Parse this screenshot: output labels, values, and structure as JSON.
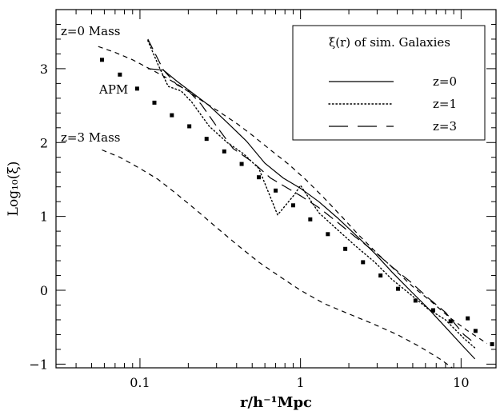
{
  "chart_data": {
    "type": "line",
    "title": "",
    "xlabel": "r/h⁻¹Mpc",
    "ylabel": "Log₁₀(ξ)",
    "xscale": "log",
    "xlim": [
      0.03,
      16.5
    ],
    "ylim": [
      -1.05,
      3.8
    ],
    "xticks_major": [
      {
        "value": 0.1,
        "label": "0.1"
      },
      {
        "value": 1,
        "label": "1"
      },
      {
        "value": 10,
        "label": "10"
      }
    ],
    "yticks_major": [
      {
        "value": -1,
        "label": "−1"
      },
      {
        "value": 0,
        "label": "0"
      },
      {
        "value": 1,
        "label": "1"
      },
      {
        "value": 2,
        "label": "2"
      },
      {
        "value": 3,
        "label": "3"
      }
    ],
    "legend": {
      "title": "ξ(r) of sim. Galaxies",
      "placement": "top-right"
    },
    "series": [
      {
        "name": "z=0",
        "style": "solid",
        "x": [
          0.112,
          0.14,
          0.17,
          0.21,
          0.27,
          0.35,
          0.46,
          0.6,
          0.78,
          1.0,
          1.3,
          1.7,
          2.2,
          2.9,
          3.7,
          4.8,
          6.2,
          8.0,
          10.4,
          12.2
        ],
        "y": [
          3.0,
          2.98,
          2.83,
          2.68,
          2.5,
          2.27,
          2.02,
          1.72,
          1.52,
          1.38,
          1.2,
          0.98,
          0.75,
          0.5,
          0.25,
          0.0,
          -0.24,
          -0.5,
          -0.77,
          -0.93
        ]
      },
      {
        "name": "z=1",
        "style": "dotted",
        "x": [
          0.112,
          0.13,
          0.15,
          0.18,
          0.21,
          0.27,
          0.35,
          0.44,
          0.55,
          0.72,
          0.92,
          1.0,
          1.3,
          1.7,
          2.2,
          2.9,
          3.7,
          4.8,
          6.2,
          8.0,
          10.4,
          12.2
        ],
        "y": [
          3.38,
          3.05,
          2.76,
          2.7,
          2.55,
          2.22,
          2.0,
          1.85,
          1.65,
          1.02,
          1.3,
          1.42,
          1.05,
          0.82,
          0.6,
          0.38,
          0.15,
          -0.05,
          -0.25,
          -0.4,
          -0.65,
          -0.78
        ]
      },
      {
        "name": "z=3",
        "style": "long-dashed",
        "x": [
          0.112,
          0.14,
          0.17,
          0.2,
          0.24,
          0.3,
          0.38,
          0.5,
          0.65,
          0.85,
          1.0,
          1.3,
          1.7,
          2.2,
          2.9,
          3.7,
          4.8,
          6.2,
          8.0,
          10.4,
          12.2
        ],
        "y": [
          3.4,
          2.98,
          2.78,
          2.7,
          2.52,
          2.22,
          1.92,
          1.74,
          1.52,
          1.37,
          1.28,
          1.12,
          0.92,
          0.72,
          0.52,
          0.32,
          0.12,
          -0.1,
          -0.3,
          -0.6,
          -0.72
        ]
      },
      {
        "name": "z=0 Mass",
        "style": "short-dashed",
        "label": "z=0  Mass",
        "x": [
          0.055,
          0.07,
          0.09,
          0.11,
          0.14,
          0.18,
          0.23,
          0.3,
          0.4,
          0.5,
          0.65,
          0.85,
          1.1,
          1.4,
          1.8,
          2.3,
          3.0,
          3.9,
          5.0,
          6.5,
          8.5,
          11.0,
          14.5
        ],
        "y": [
          3.3,
          3.22,
          3.12,
          3.02,
          2.9,
          2.76,
          2.6,
          2.44,
          2.26,
          2.1,
          1.9,
          1.7,
          1.48,
          1.25,
          1.0,
          0.75,
          0.5,
          0.27,
          0.05,
          -0.15,
          -0.37,
          -0.55,
          -0.72
        ]
      },
      {
        "name": "z=3 Mass",
        "style": "short-dashed",
        "label": "z=3  Mass",
        "x": [
          0.058,
          0.075,
          0.1,
          0.13,
          0.17,
          0.22,
          0.3,
          0.4,
          0.55,
          0.75,
          1.0,
          1.4,
          2.0,
          2.8,
          4.0,
          5.5,
          7.5,
          8.8
        ],
        "y": [
          1.9,
          1.8,
          1.65,
          1.5,
          1.3,
          1.1,
          0.85,
          0.62,
          0.38,
          0.18,
          0.0,
          -0.18,
          -0.32,
          -0.45,
          -0.6,
          -0.76,
          -0.94,
          -1.05
        ]
      },
      {
        "name": "APM",
        "style": "points",
        "label": "APM",
        "x": [
          0.058,
          0.075,
          0.096,
          0.123,
          0.158,
          0.203,
          0.26,
          0.335,
          0.43,
          0.55,
          0.7,
          0.9,
          1.15,
          1.48,
          1.9,
          2.45,
          3.15,
          4.05,
          5.2,
          6.7,
          8.6,
          11.0,
          12.3,
          15.6
        ],
        "y": [
          3.12,
          2.92,
          2.73,
          2.54,
          2.37,
          2.22,
          2.05,
          1.88,
          1.71,
          1.53,
          1.35,
          1.15,
          0.96,
          0.76,
          0.56,
          0.38,
          0.2,
          0.02,
          -0.14,
          -0.27,
          -0.42,
          -0.38,
          -0.55,
          -0.73
        ]
      }
    ]
  }
}
